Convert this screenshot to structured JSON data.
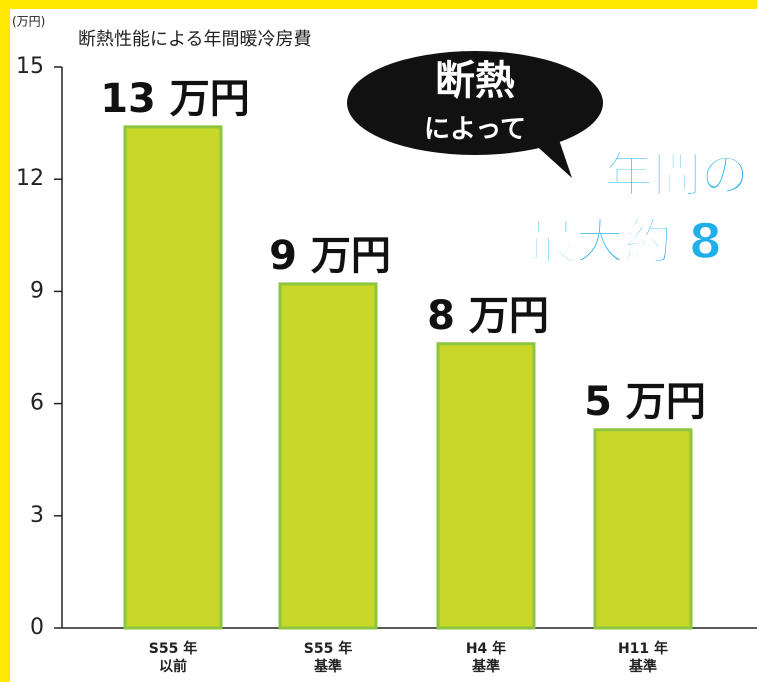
{
  "chart_data": {
    "type": "bar",
    "unit_label": "(万円)",
    "title": "断熱性能による年間暖冷房費",
    "categories": [
      "S55 年\n以前",
      "S55 年\n基準",
      "H4 年\n基準",
      "H11 年\n基準"
    ],
    "values": [
      13.4,
      9.2,
      7.6,
      5.3
    ],
    "value_labels": [
      "13 万円",
      "9 万円",
      "8 万円",
      "5 万円"
    ],
    "color": "#c9d72a",
    "edge_color": "#8cc63f",
    "ylim": [
      0,
      15
    ],
    "yticks": [
      0,
      3,
      6,
      9,
      12,
      15
    ],
    "annotations": [
      "断熱",
      "によって",
      "年間の",
      "最大約 8"
    ]
  }
}
